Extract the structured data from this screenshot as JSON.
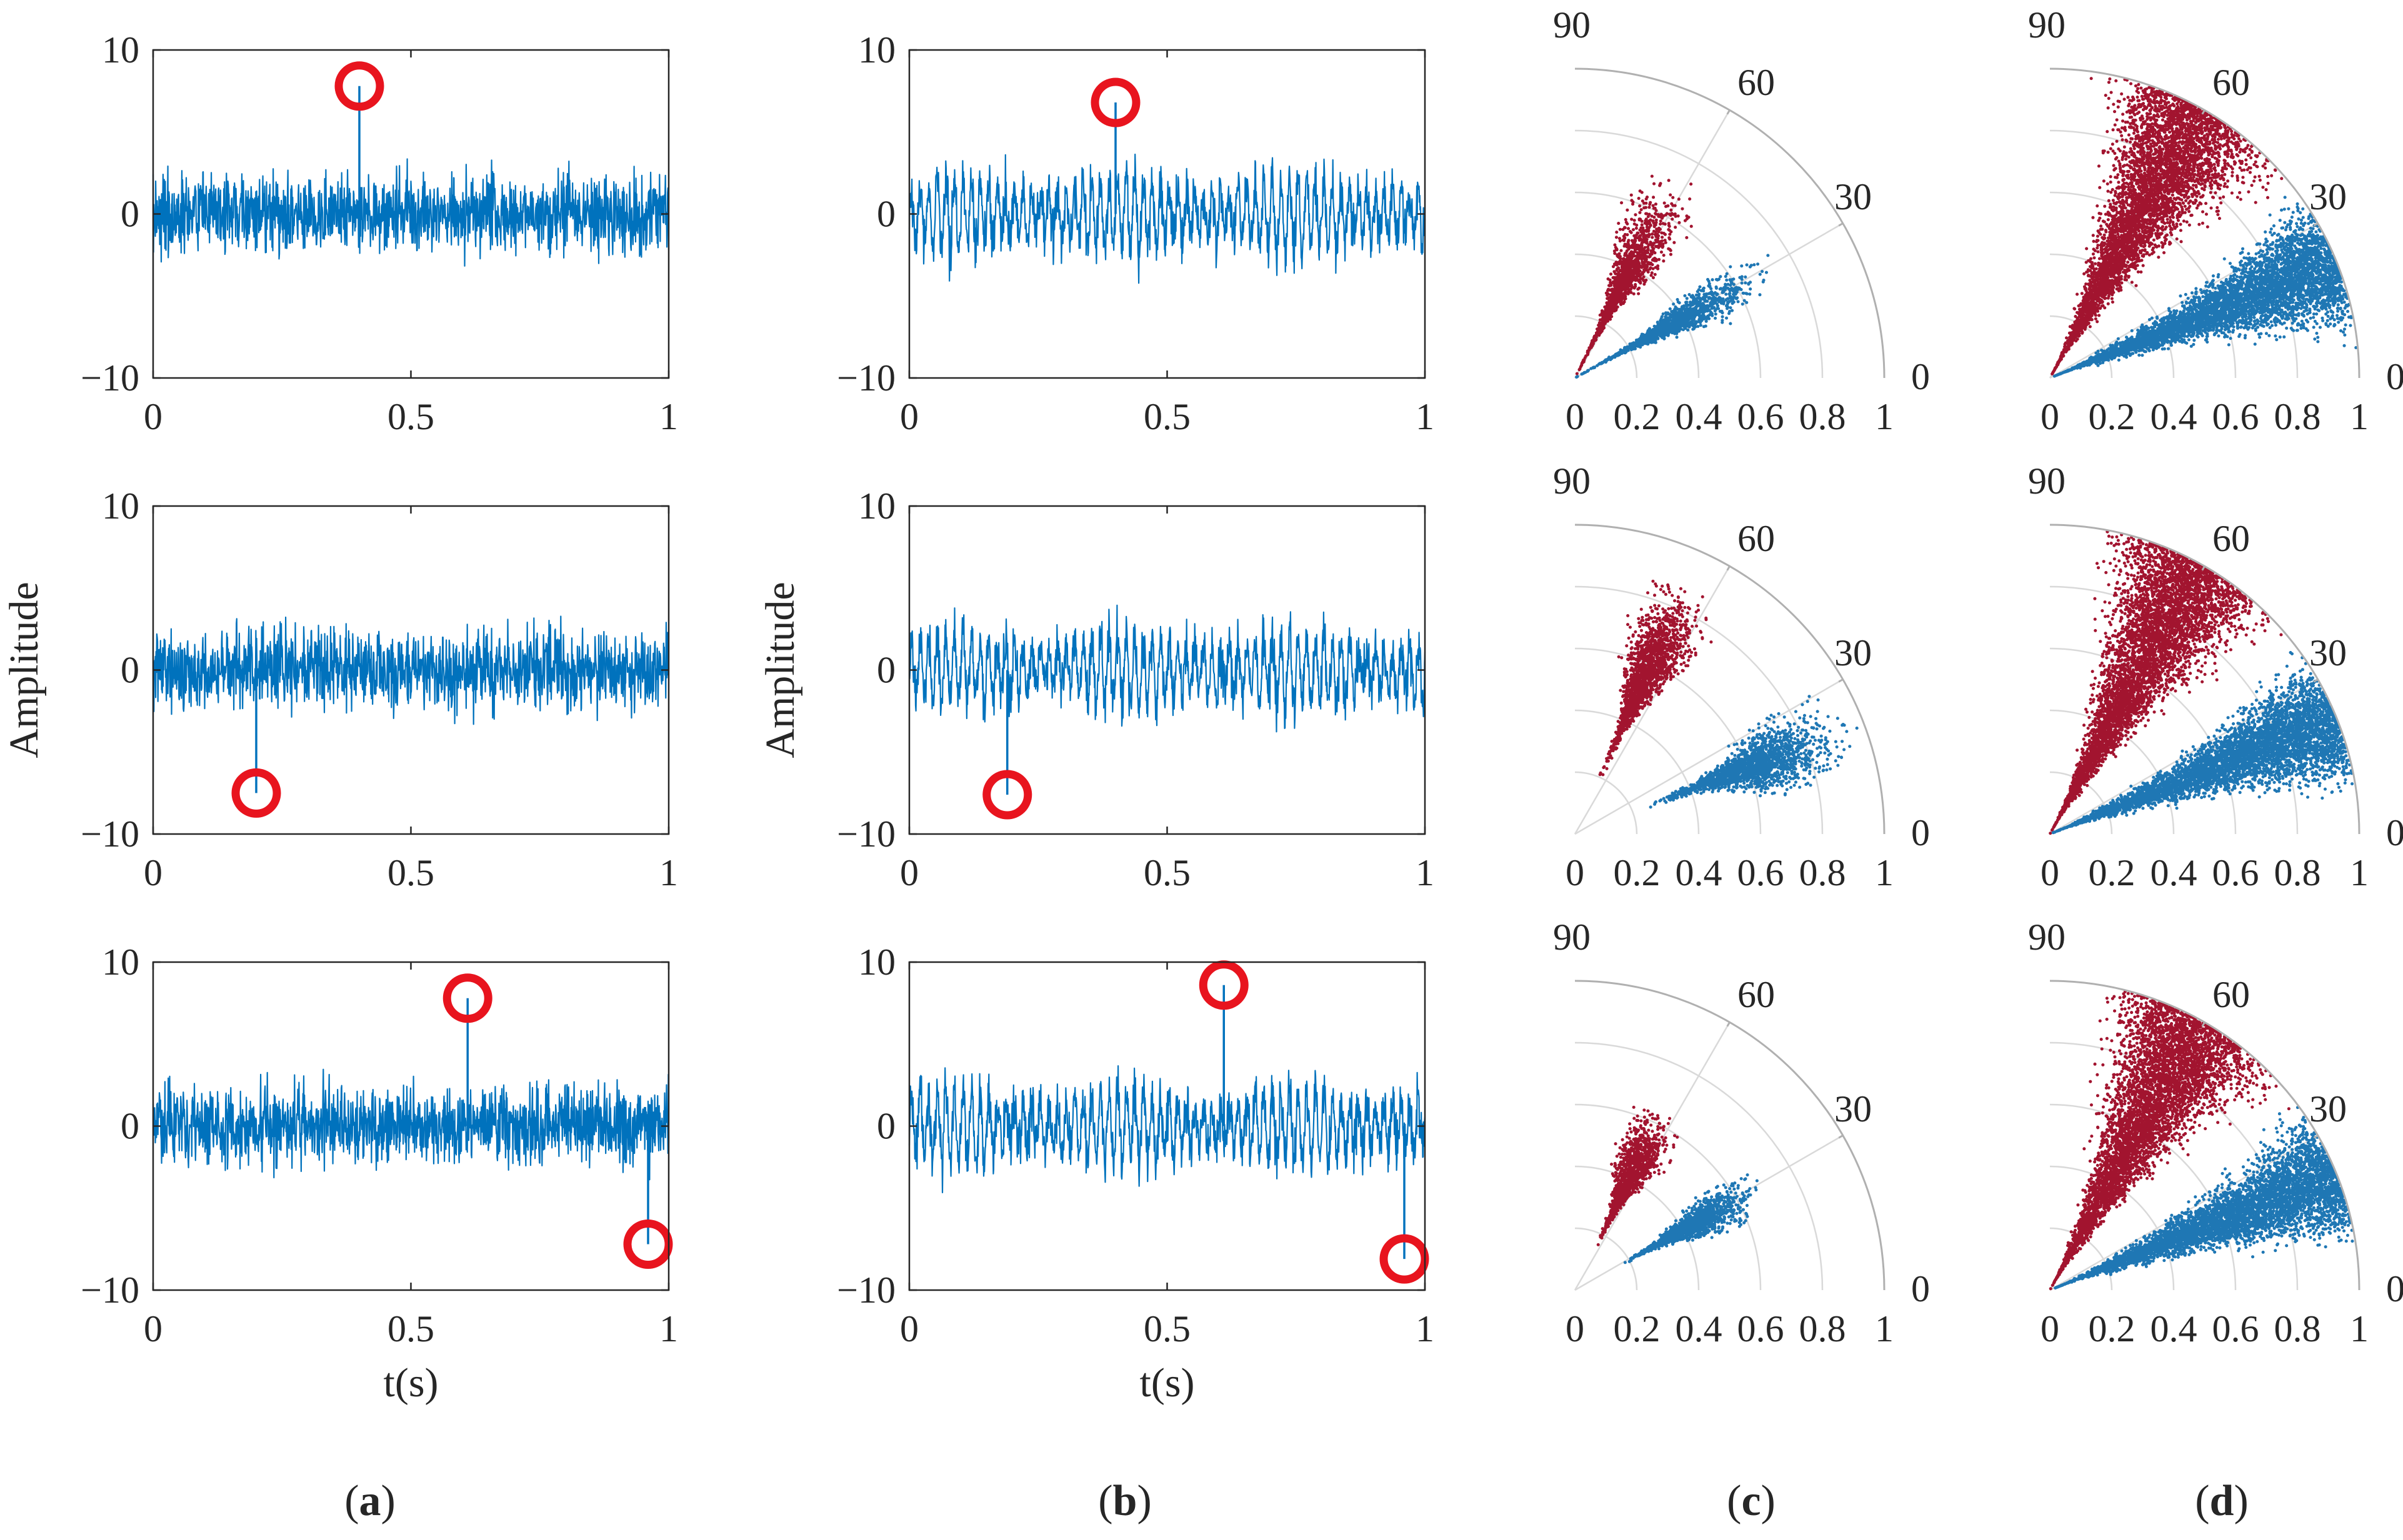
{
  "colors": {
    "signal": "#0072BD",
    "marker": "#E8141E",
    "polar_red": "#A2142F",
    "polar_blue": "#1F77B4",
    "axis": "#262626",
    "grid": "#D9D9D9",
    "polar_frame": "#B0B0B0"
  },
  "panel_labels": {
    "a": {
      "open": "(",
      "letter": "a",
      "close": ")"
    },
    "b": {
      "open": "(",
      "letter": "b",
      "close": ")"
    },
    "c": {
      "open": "(",
      "letter": "c",
      "close": ")"
    },
    "d": {
      "open": "(",
      "letter": "d",
      "close": ")"
    }
  },
  "chart_data": [
    {
      "id": "a1",
      "type": "line",
      "column": "a",
      "row": 1,
      "xlim": [
        0,
        1
      ],
      "ylim": [
        -10,
        10
      ],
      "xticks": [
        "0",
        "0.5",
        "1"
      ],
      "yticks": [
        "10",
        "0",
        "−10"
      ],
      "xlabel": "",
      "ylabel": "",
      "noise": {
        "amplitude": 2.6,
        "periodic_component": 0.0,
        "envelope": [
          -4,
          3.5
        ]
      },
      "impulses": [
        {
          "t": 0.4,
          "value": 7.8
        }
      ]
    },
    {
      "id": "a2",
      "type": "line",
      "column": "a",
      "row": 2,
      "xlim": [
        0,
        1
      ],
      "ylim": [
        -10,
        10
      ],
      "xticks": [
        "0",
        "0.5",
        "1"
      ],
      "yticks": [
        "10",
        "0",
        "−10"
      ],
      "xlabel": "",
      "ylabel": "Amplitude",
      "noise": {
        "amplitude": 2.6,
        "periodic_component": 0.0,
        "envelope": [
          -3.5,
          3.8
        ]
      },
      "impulses": [
        {
          "t": 0.2,
          "value": -7.5
        }
      ]
    },
    {
      "id": "a3",
      "type": "line",
      "column": "a",
      "row": 3,
      "xlim": [
        0,
        1
      ],
      "ylim": [
        -10,
        10
      ],
      "xticks": [
        "0",
        "0.5",
        "1"
      ],
      "yticks": [
        "10",
        "0",
        "−10"
      ],
      "xlabel": "t(s)",
      "ylabel": "",
      "noise": {
        "amplitude": 2.6,
        "periodic_component": 0.0,
        "envelope": [
          -3.5,
          3.5
        ]
      },
      "impulses": [
        {
          "t": 0.61,
          "value": 7.8
        },
        {
          "t": 0.96,
          "value": -7.2
        }
      ]
    },
    {
      "id": "b1",
      "type": "line",
      "column": "b",
      "row": 1,
      "xlim": [
        0,
        1
      ],
      "ylim": [
        -10,
        10
      ],
      "xticks": [
        "0",
        "0.5",
        "1"
      ],
      "yticks": [
        "10",
        "0",
        "−10"
      ],
      "xlabel": "",
      "ylabel": "",
      "noise": {
        "amplitude": 1.7,
        "periodic_component": 2.2,
        "envelope": [
          -5,
          4
        ]
      },
      "impulses": [
        {
          "t": 0.4,
          "value": 6.8
        }
      ]
    },
    {
      "id": "b2",
      "type": "line",
      "column": "b",
      "row": 2,
      "xlim": [
        0,
        1
      ],
      "ylim": [
        -10,
        10
      ],
      "xticks": [
        "0",
        "0.5",
        "1"
      ],
      "yticks": [
        "10",
        "0",
        "−10"
      ],
      "xlabel": "",
      "ylabel": "Amplitude",
      "noise": {
        "amplitude": 1.7,
        "periodic_component": 2.2,
        "envelope": [
          -4.5,
          4
        ]
      },
      "impulses": [
        {
          "t": 0.19,
          "value": -7.6
        }
      ]
    },
    {
      "id": "b3",
      "type": "line",
      "column": "b",
      "row": 3,
      "xlim": [
        0,
        1
      ],
      "ylim": [
        -10,
        10
      ],
      "xticks": [
        "0",
        "0.5",
        "1"
      ],
      "yticks": [
        "10",
        "0",
        "−10"
      ],
      "xlabel": "t(s)",
      "ylabel": "",
      "noise": {
        "amplitude": 1.7,
        "periodic_component": 2.2,
        "envelope": [
          -4.5,
          4.5
        ]
      },
      "impulses": [
        {
          "t": 0.61,
          "value": 8.6
        },
        {
          "t": 0.96,
          "value": -8.1
        }
      ]
    },
    {
      "id": "c1",
      "type": "scatter",
      "subtype": "polar-quadrant",
      "column": "c",
      "row": 1,
      "rlim": [
        0,
        1
      ],
      "theta_range_deg": [
        0,
        90
      ],
      "theta_ticks": [
        "0",
        "30",
        "60",
        "90"
      ],
      "r_ticks": [
        "0",
        "0.2",
        "0.4",
        "0.6",
        "0.8",
        "1"
      ],
      "clusters": [
        {
          "name": "red",
          "color": "#A2142F",
          "theta_deg": [
            50,
            76
          ],
          "r": [
            0.06,
            0.68
          ],
          "count": 1400
        },
        {
          "name": "blue",
          "color": "#1F77B4",
          "theta_deg": [
            20,
            38
          ],
          "r": [
            0.06,
            0.66
          ],
          "count": 1400
        }
      ]
    },
    {
      "id": "c2",
      "type": "scatter",
      "subtype": "polar-quadrant",
      "column": "c",
      "row": 2,
      "rlim": [
        0,
        1
      ],
      "theta_range_deg": [
        0,
        90
      ],
      "theta_ticks": [
        "0",
        "30",
        "60",
        "90"
      ],
      "r_ticks": [
        "0",
        "0.2",
        "0.4",
        "0.6",
        "0.8",
        "1"
      ],
      "clusters": [
        {
          "name": "red",
          "color": "#A2142F",
          "theta_deg": [
            55,
            77
          ],
          "r": [
            0.28,
            0.85
          ],
          "count": 1800
        },
        {
          "name": "blue",
          "color": "#1F77B4",
          "theta_deg": [
            10,
            32
          ],
          "r": [
            0.32,
            0.9
          ],
          "count": 1800
        }
      ]
    },
    {
      "id": "c3",
      "type": "scatter",
      "subtype": "polar-quadrant",
      "column": "c",
      "row": 3,
      "rlim": [
        0,
        1
      ],
      "theta_range_deg": [
        0,
        90
      ],
      "theta_ticks": [
        "0",
        "30",
        "60",
        "90"
      ],
      "r_ticks": [
        "0",
        "0.2",
        "0.4",
        "0.6",
        "0.8",
        "1"
      ],
      "clusters": [
        {
          "name": "red",
          "color": "#A2142F",
          "theta_deg": [
            53,
            75
          ],
          "r": [
            0.2,
            0.62
          ],
          "count": 1300
        },
        {
          "name": "blue",
          "color": "#1F77B4",
          "theta_deg": [
            20,
            38
          ],
          "r": [
            0.22,
            0.65
          ],
          "count": 1300
        }
      ]
    },
    {
      "id": "d1",
      "type": "scatter",
      "subtype": "polar-quadrant",
      "column": "d",
      "row": 1,
      "rlim": [
        0,
        1
      ],
      "theta_range_deg": [
        0,
        90
      ],
      "theta_ticks": [
        "0",
        "30",
        "60",
        "90"
      ],
      "r_ticks": [
        "0",
        "0.2",
        "0.4",
        "0.6",
        "0.8",
        "1"
      ],
      "clusters": [
        {
          "name": "red",
          "color": "#A2142F",
          "theta_deg": [
            42,
            80
          ],
          "r": [
            0.0,
            1.0
          ],
          "count": 5000
        },
        {
          "name": "blue",
          "color": "#1F77B4",
          "theta_deg": [
            8,
            36
          ],
          "r": [
            0.0,
            1.0
          ],
          "count": 5000
        }
      ]
    },
    {
      "id": "d2",
      "type": "scatter",
      "subtype": "polar-quadrant",
      "column": "d",
      "row": 2,
      "rlim": [
        0,
        1
      ],
      "theta_range_deg": [
        0,
        90
      ],
      "theta_ticks": [
        "0",
        "30",
        "60",
        "90"
      ],
      "r_ticks": [
        "0",
        "0.2",
        "0.4",
        "0.6",
        "0.8",
        "1"
      ],
      "clusters": [
        {
          "name": "red",
          "color": "#A2142F",
          "theta_deg": [
            42,
            80
          ],
          "r": [
            0.0,
            1.0
          ],
          "count": 5000
        },
        {
          "name": "blue",
          "color": "#1F77B4",
          "theta_deg": [
            8,
            36
          ],
          "r": [
            0.0,
            1.0
          ],
          "count": 5000
        }
      ]
    },
    {
      "id": "d3",
      "type": "scatter",
      "subtype": "polar-quadrant",
      "column": "d",
      "row": 3,
      "rlim": [
        0,
        1
      ],
      "theta_range_deg": [
        0,
        90
      ],
      "theta_ticks": [
        "0",
        "30",
        "60",
        "90"
      ],
      "r_ticks": [
        "0",
        "0.2",
        "0.4",
        "0.6",
        "0.8",
        "1"
      ],
      "clusters": [
        {
          "name": "red",
          "color": "#A2142F",
          "theta_deg": [
            42,
            80
          ],
          "r": [
            0.0,
            1.0
          ],
          "count": 5000
        },
        {
          "name": "blue",
          "color": "#1F77B4",
          "theta_deg": [
            8,
            36
          ],
          "r": [
            0.0,
            1.0
          ],
          "count": 5000
        }
      ]
    }
  ]
}
